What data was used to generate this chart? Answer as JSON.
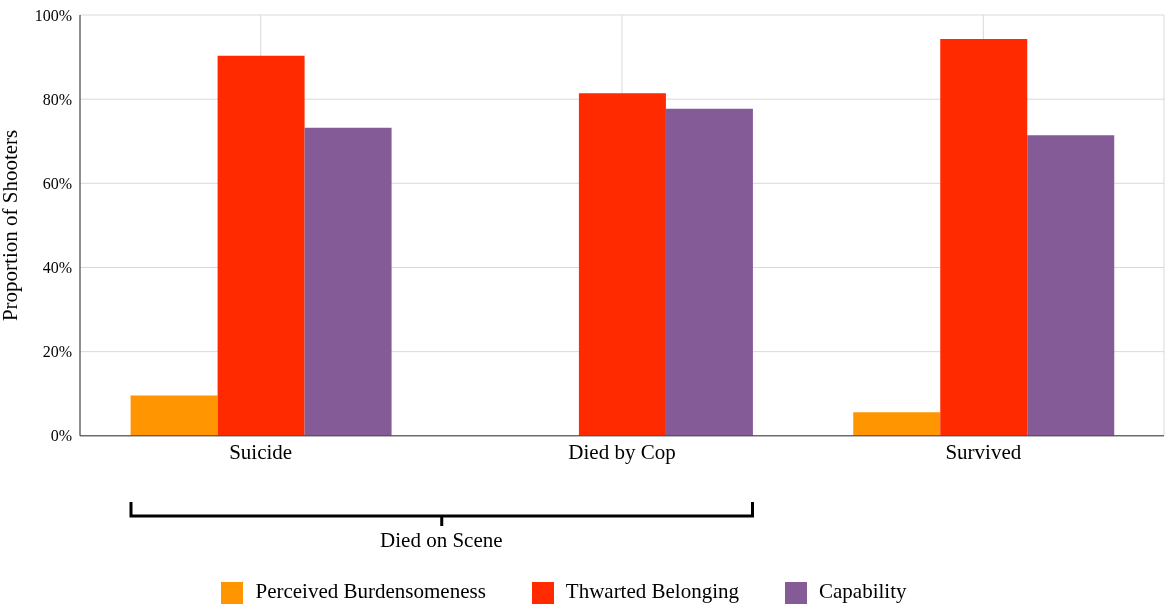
{
  "chart_data": {
    "type": "bar",
    "ylabel": "Proportion of Shooters",
    "categories": [
      "Suicide",
      "Died by Cop",
      "Survived"
    ],
    "series": [
      {
        "name": "Perceived Burdensomeness",
        "color": "#ff9500",
        "values": [
          9.6,
          0,
          5.6
        ]
      },
      {
        "name": "Thwarted Belonging",
        "color": "#ff2a00",
        "values": [
          90.3,
          81.4,
          94.3
        ]
      },
      {
        "name": "Capability",
        "color": "#845b97",
        "values": [
          73.2,
          77.7,
          71.4
        ]
      }
    ],
    "ylim": [
      0,
      100
    ],
    "yticks": [
      {
        "value": 0,
        "label": "0%"
      },
      {
        "value": 20,
        "label": "20%"
      },
      {
        "value": 40,
        "label": "40%"
      },
      {
        "value": 60,
        "label": "60%"
      },
      {
        "value": 80,
        "label": "80%"
      },
      {
        "value": 100,
        "label": "100%"
      }
    ],
    "grid": true,
    "legend": "bottom",
    "annotations": [
      "Died on Scene"
    ]
  }
}
